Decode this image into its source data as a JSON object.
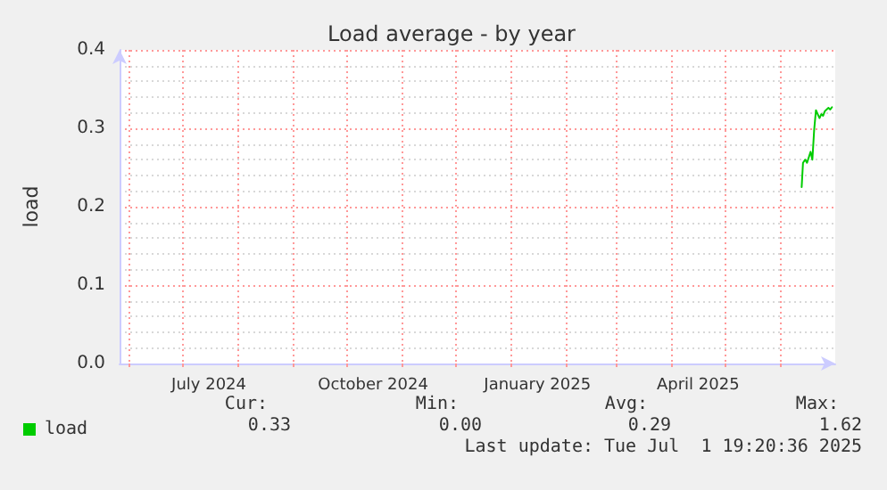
{
  "chart_data": {
    "type": "line",
    "title": "Load average - by year",
    "ylabel": "load",
    "x": [
      "2025-06-13",
      "2025-06-13T18:00",
      "2025-06-15",
      "2025-06-16",
      "2025-06-18",
      "2025-06-19",
      "2025-06-20",
      "2025-06-21",
      "2025-06-23",
      "2025-06-24",
      "2025-06-25",
      "2025-06-26",
      "2025-06-28",
      "2025-06-29",
      "2025-06-30"
    ],
    "series": [
      {
        "name": "load",
        "color": "#00cc00",
        "values": [
          0.225,
          0.256,
          0.26,
          0.256,
          0.27,
          0.26,
          0.298,
          0.323,
          0.313,
          0.318,
          0.316,
          0.322,
          0.326,
          0.324,
          0.327
        ]
      }
    ],
    "xlim": [
      "2024-05-27",
      "2025-07-01T19:20"
    ],
    "xticks": [
      {
        "value": "2024-06-01",
        "label": null
      },
      {
        "value": "2024-07-01",
        "label": null
      },
      {
        "value": "2024-07-16",
        "label": "July 2024"
      },
      {
        "value": "2024-08-01",
        "label": null
      },
      {
        "value": "2024-09-01",
        "label": null
      },
      {
        "value": "2024-10-01",
        "label": null
      },
      {
        "value": "2024-10-16",
        "label": "October 2024"
      },
      {
        "value": "2024-11-01",
        "label": null
      },
      {
        "value": "2024-12-01",
        "label": null
      },
      {
        "value": "2025-01-01",
        "label": null
      },
      {
        "value": "2025-01-16",
        "label": "January 2025"
      },
      {
        "value": "2025-02-01",
        "label": null
      },
      {
        "value": "2025-03-01",
        "label": null
      },
      {
        "value": "2025-04-01",
        "label": null
      },
      {
        "value": "2025-04-16",
        "label": "April 2025"
      },
      {
        "value": "2025-05-01",
        "label": null
      },
      {
        "value": "2025-06-01",
        "label": null
      }
    ],
    "ylim": [
      0,
      0.4
    ],
    "yticks": [
      {
        "value": 0,
        "label": "0.0"
      },
      {
        "value": 0.1,
        "label": "0.1"
      },
      {
        "value": 0.2,
        "label": "0.2"
      },
      {
        "value": 0.3,
        "label": "0.3"
      },
      {
        "value": 0.4,
        "label": "0.4"
      }
    ],
    "grid": true,
    "legend": "bottom left",
    "marker": "none",
    "line_style": "solid",
    "annotations": [
      "Cur:",
      "0.33",
      "Min:",
      "0.00",
      "Avg:",
      "0.29",
      "Max:",
      "1.62",
      "Last update: Tue Jul  1 19:20:36 2025"
    ]
  }
}
